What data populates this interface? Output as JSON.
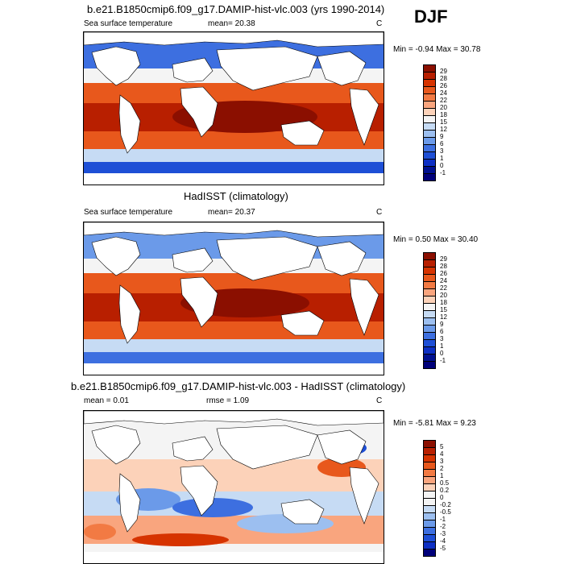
{
  "season": "DJF",
  "panels": [
    {
      "id": "model",
      "title": "b.e21.B1850cmip6.f09_g17.DAMIP-hist-vlc.003 (yrs 1990-2014)",
      "left_label": "Sea surface temperature",
      "center_label": "mean=  20.38",
      "units": "C",
      "minmax": "Min = -0.94 Max =  30.78",
      "scale": "abs",
      "levels": [
        "29",
        "28",
        "26",
        "24",
        "22",
        "20",
        "18",
        "15",
        "12",
        "9",
        "6",
        "3",
        "1",
        "0",
        "-1"
      ]
    },
    {
      "id": "obs",
      "title": "HadISST (climatology)",
      "left_label": "Sea surface temperature",
      "center_label": "mean=  20.37",
      "units": "C",
      "minmax": "Min =  0.50 Max =  30.40",
      "scale": "abs",
      "levels": [
        "29",
        "28",
        "26",
        "24",
        "22",
        "20",
        "18",
        "15",
        "12",
        "9",
        "6",
        "3",
        "1",
        "0",
        "-1"
      ]
    },
    {
      "id": "diff",
      "title": "b.e21.B1850cmip6.f09_g17.DAMIP-hist-vlc.003 - HadISST (climatology)",
      "left_label": "mean =   0.01",
      "center_label": "rmse =   1.09",
      "units": "C",
      "minmax": "Min = -5.81 Max =  9.23",
      "scale": "diff",
      "levels": [
        "5",
        "4",
        "3",
        "2",
        "1",
        "0.5",
        "0.2",
        "0",
        "-0.2",
        "-0.5",
        "-1",
        "-2",
        "-3",
        "-4",
        "-5"
      ]
    }
  ],
  "colors": {
    "abs": [
      "#8b0f00",
      "#b81f00",
      "#d63300",
      "#e8581c",
      "#f27a43",
      "#f9a57e",
      "#fcd2b9",
      "#f4f4f4",
      "#c6dbf4",
      "#9cbff0",
      "#6b9ae9",
      "#3d6fe0",
      "#1e4fd6",
      "#0d2fc4",
      "#00108f",
      "#00007a"
    ],
    "diff": [
      "#8b0f00",
      "#b81f00",
      "#d63300",
      "#e8581c",
      "#f27a43",
      "#f9a57e",
      "#fcd2b9",
      "#f4f4f4",
      "#f4f4f4",
      "#c6dbf4",
      "#9cbff0",
      "#6b9ae9",
      "#3d6fe0",
      "#1e4fd6",
      "#0d2fc4",
      "#00007a"
    ]
  }
}
